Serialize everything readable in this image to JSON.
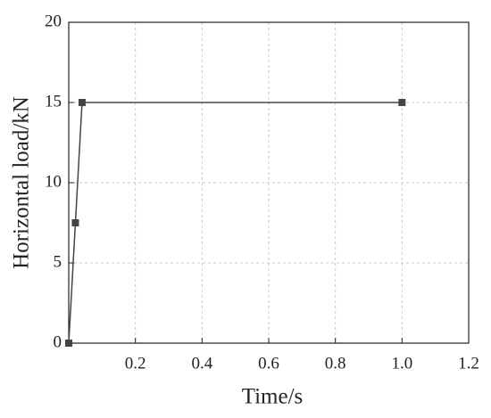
{
  "chart_data": {
    "type": "line",
    "x_label": "Time/s",
    "y_label": "Horizontal load/kN",
    "series": [
      {
        "name": "Horizontal load",
        "color": "#444444",
        "x": [
          0,
          0.02,
          0.04,
          1
        ],
        "values": [
          0,
          7.5,
          15,
          15
        ]
      }
    ],
    "xlim": [
      0,
      1.2
    ],
    "ylim": [
      0,
      20
    ],
    "xticks": [
      0.2,
      0.4,
      0.6,
      0.8,
      {
        "value": 1,
        "label": "1.0"
      },
      1.2
    ],
    "yticks": [
      0,
      5,
      10,
      15,
      20
    ],
    "grid": true
  }
}
